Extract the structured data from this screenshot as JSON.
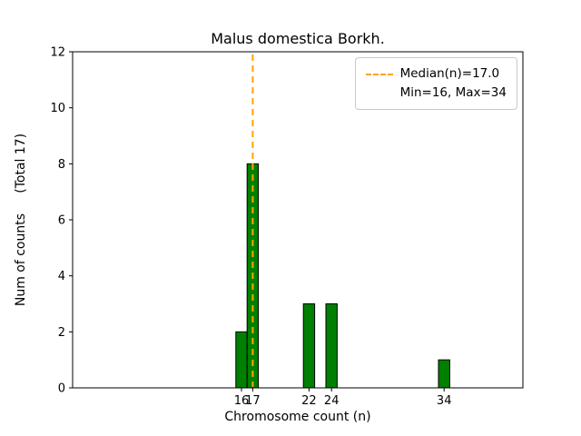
{
  "chart_data": {
    "type": "bar",
    "title": "Malus domestica Borkh.",
    "xlabel": "Chromosome count (n)",
    "ylabel": "Num of counts     (Total 17)",
    "categories": [
      16,
      17,
      22,
      24,
      34
    ],
    "values": [
      2,
      8,
      3,
      3,
      1
    ],
    "total_counts": 17,
    "median": 17.0,
    "min": 16,
    "max": 34,
    "bar_color": "#008000",
    "bar_edge_color": "#000000",
    "median_line_color": "#FFA500",
    "axis_color": "#000000",
    "xlim": [
      1,
      41
    ],
    "ylim": [
      0,
      12
    ],
    "xticks": [
      16,
      17,
      22,
      24,
      34
    ],
    "yticks": [
      0,
      2,
      4,
      6,
      8,
      10,
      12
    ],
    "bar_width": 1.0,
    "grid": false,
    "legend": {
      "position": "upper right",
      "entries": [
        {
          "label": "Median(n)=17.0",
          "sample": "dashed-line"
        },
        {
          "label": "Min=16, Max=34",
          "sample": "none"
        }
      ]
    }
  }
}
